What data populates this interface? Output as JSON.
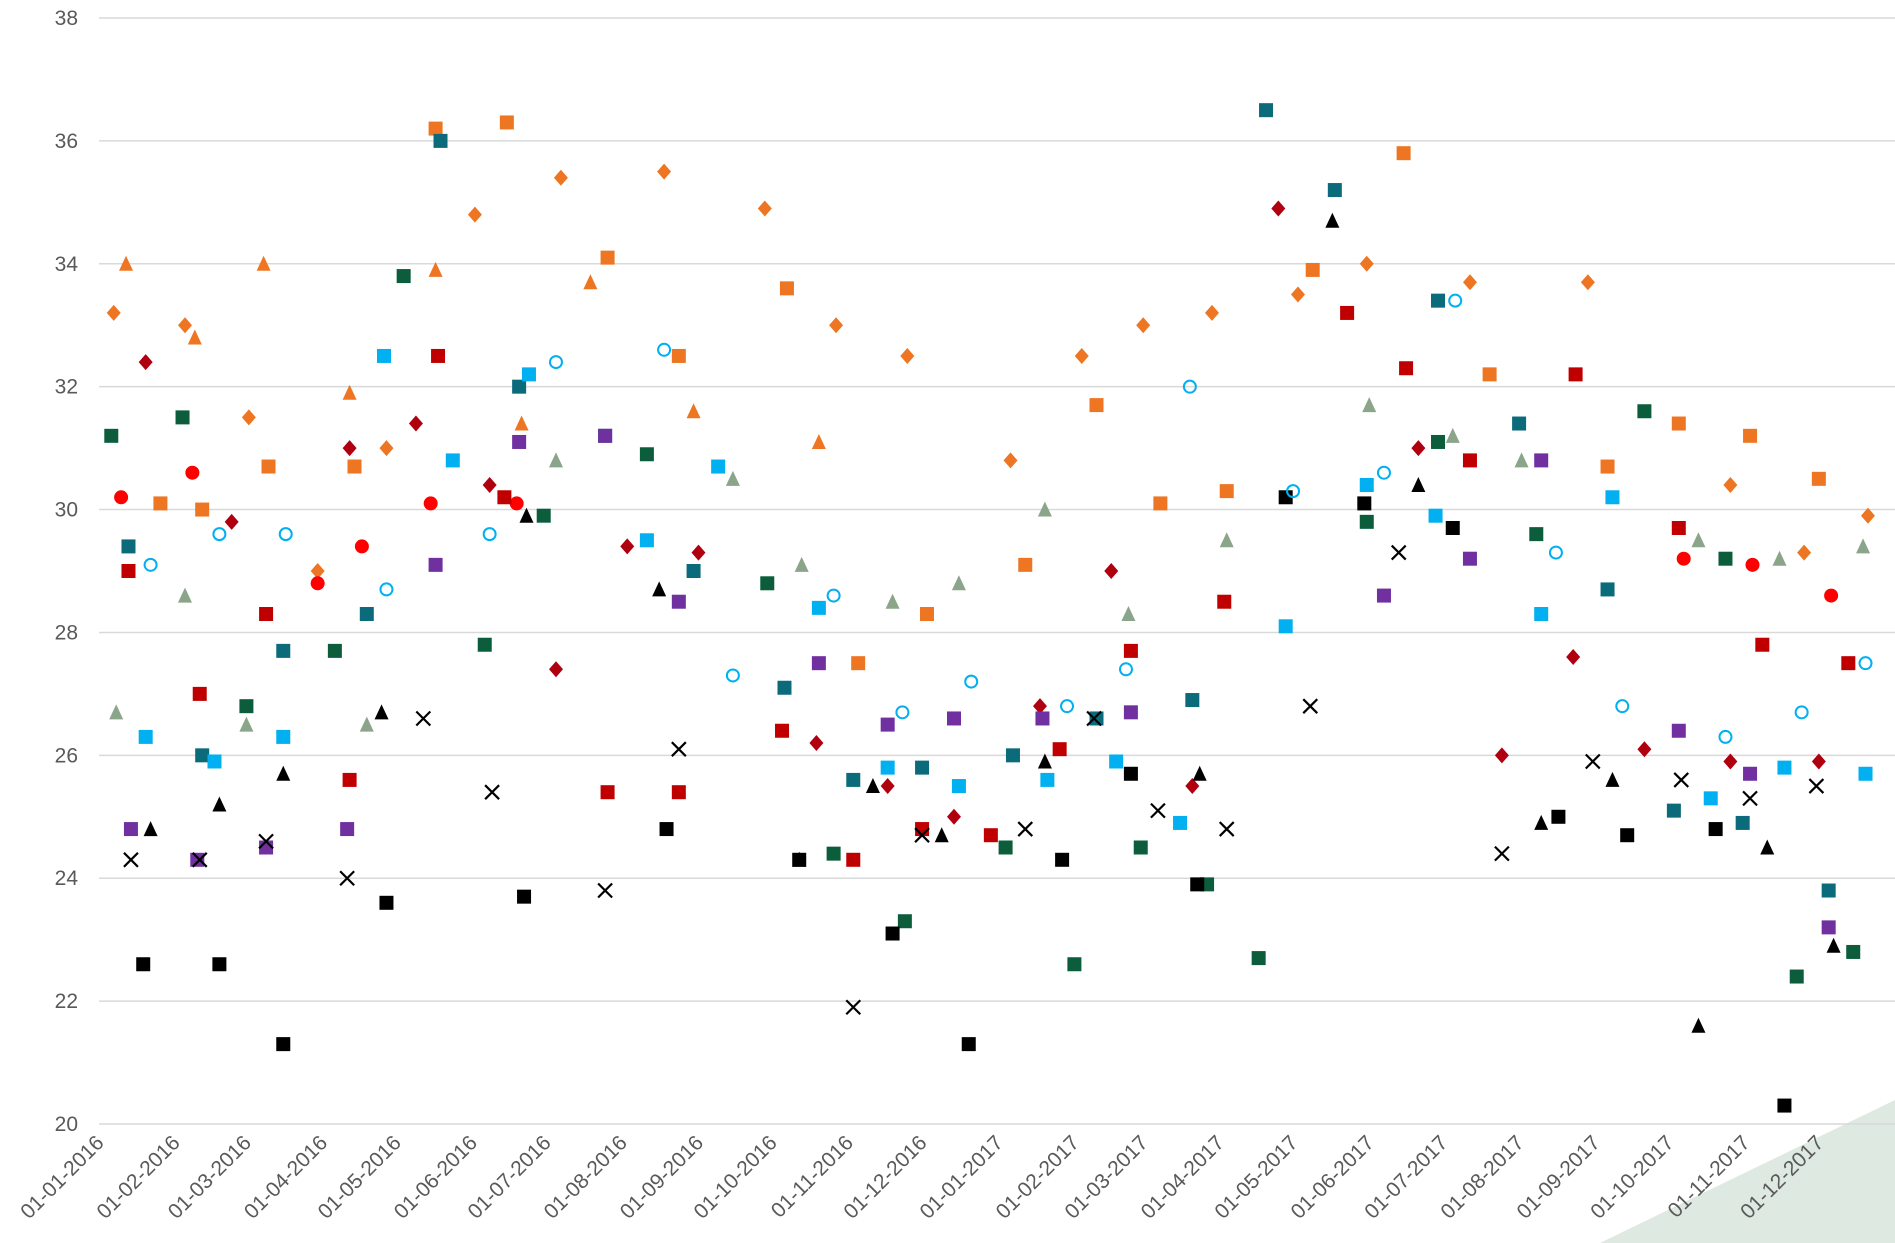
{
  "chart_data": {
    "type": "scatter",
    "xlim": [
      "01-01-2016",
      "01-01-2018"
    ],
    "ylim": [
      20,
      38
    ],
    "yticks": [
      20,
      22,
      24,
      26,
      28,
      30,
      32,
      34,
      36,
      38
    ],
    "grid": true,
    "xticks": [
      "01-01-2016",
      "01-02-2016",
      "01-03-2016",
      "01-04-2016",
      "01-05-2016",
      "01-06-2016",
      "01-07-2016",
      "01-08-2016",
      "01-09-2016",
      "01-10-2016",
      "01-11-2016",
      "01-12-2016",
      "01-01-2017",
      "01-02-2017",
      "01-03-2017",
      "01-04-2017",
      "01-05-2017",
      "01-06-2017",
      "01-07-2017",
      "01-08-2017",
      "01-09-2017",
      "01-10-2017",
      "01-11-2017",
      "01-12-2017"
    ],
    "series": [
      {
        "color": "#ee7623",
        "marker": "diamond",
        "x": [
          "07-01-2016",
          "05-02-2016",
          "02-03-2016",
          "30-03-2016",
          "27-04-2016",
          "02-06-2016",
          "07-07-2016",
          "18-08-2016",
          "28-09-2016",
          "27-10-2016",
          "25-11-2016",
          "06-01-2017",
          "04-02-2017",
          "01-03-2017",
          "29-03-2017",
          "03-05-2017",
          "31-05-2017",
          "12-07-2017",
          "29-08-2017",
          "26-10-2017",
          "25-11-2017",
          "21-12-2017"
        ],
        "values": [
          33.2,
          33.0,
          31.5,
          29.0,
          31.0,
          34.8,
          35.4,
          35.5,
          34.9,
          33.0,
          32.5,
          30.8,
          32.5,
          33.0,
          33.2,
          33.5,
          34.0,
          33.7,
          33.7,
          30.4,
          29.3,
          29.9
        ]
      },
      {
        "color": "#ee7623",
        "marker": "square",
        "x": [
          "26-01-2016",
          "12-02-2016",
          "10-03-2016",
          "14-04-2016",
          "17-05-2016",
          "15-06-2016",
          "26-07-2016",
          "24-08-2016",
          "07-10-2016",
          "05-11-2016",
          "03-12-2016",
          "12-01-2017",
          "10-02-2017",
          "08-03-2017",
          "04-04-2017",
          "09-05-2017",
          "15-06-2017",
          "20-07-2017",
          "06-09-2017",
          "05-10-2017",
          "03-11-2017",
          "01-12-2017"
        ],
        "values": [
          30.1,
          30.0,
          30.7,
          30.7,
          36.2,
          36.3,
          34.1,
          32.5,
          33.6,
          27.5,
          28.3,
          29.1,
          31.7,
          30.1,
          30.3,
          33.9,
          35.8,
          32.2,
          30.7,
          31.4,
          31.2,
          30.5
        ]
      },
      {
        "color": "#ee7623",
        "marker": "triangle",
        "x": [
          "12-01-2016",
          "09-02-2016",
          "08-03-2016",
          "12-04-2016",
          "17-05-2016",
          "21-06-2016",
          "19-07-2016",
          "30-08-2016",
          "20-10-2016"
        ],
        "values": [
          34.0,
          32.8,
          34.0,
          31.9,
          33.9,
          31.4,
          33.7,
          31.6,
          31.1
        ]
      },
      {
        "color": "#ff0000",
        "marker": "circle",
        "x": [
          "10-01-2016",
          "08-02-2016",
          "30-03-2016",
          "17-04-2016",
          "15-05-2016",
          "19-06-2016",
          "07-10-2017",
          "04-11-2017",
          "06-12-2017"
        ],
        "values": [
          30.2,
          30.6,
          28.8,
          29.4,
          30.1,
          30.1,
          29.2,
          29.1,
          28.6
        ]
      },
      {
        "color": "#c00000",
        "marker": "square",
        "x": [
          "13-01-2016",
          "11-02-2016",
          "09-03-2016",
          "12-04-2016",
          "18-05-2016",
          "14-06-2016",
          "26-07-2016",
          "24-08-2016",
          "05-10-2016",
          "03-11-2016",
          "01-12-2016",
          "29-12-2016",
          "26-01-2017",
          "24-02-2017",
          "03-04-2017",
          "23-05-2017",
          "16-06-2017",
          "12-07-2017",
          "24-08-2017",
          "05-10-2017",
          "08-11-2017",
          "13-12-2017"
        ],
        "values": [
          29.0,
          27.0,
          28.3,
          25.6,
          32.5,
          30.2,
          25.4,
          25.4,
          26.4,
          24.3,
          24.8,
          24.7,
          26.1,
          27.7,
          28.5,
          33.2,
          32.3,
          30.8,
          32.2,
          29.7,
          27.8,
          27.5
        ]
      },
      {
        "color": "#b00010",
        "marker": "diamond",
        "x": [
          "20-01-2016",
          "24-02-2016",
          "12-04-2016",
          "09-05-2016",
          "08-06-2016",
          "05-07-2016",
          "03-08-2016",
          "01-09-2016",
          "19-10-2016",
          "17-11-2016",
          "14-12-2016",
          "18-01-2017",
          "16-02-2017",
          "21-03-2017",
          "25-04-2017",
          "21-06-2017",
          "25-07-2017",
          "23-08-2017",
          "21-09-2017",
          "26-10-2017",
          "01-12-2017"
        ],
        "values": [
          32.4,
          29.8,
          31.0,
          31.4,
          30.4,
          27.4,
          29.4,
          29.3,
          26.2,
          25.5,
          25.0,
          26.8,
          29.0,
          25.5,
          34.9,
          31.0,
          26.0,
          27.6,
          26.1,
          25.9,
          25.9
        ]
      },
      {
        "color": "#0b6b7a",
        "marker": "square",
        "x": [
          "13-01-2016",
          "12-02-2016",
          "16-03-2016",
          "19-04-2016",
          "19-05-2016",
          "20-06-2016",
          "25-07-2016",
          "30-08-2016",
          "06-10-2016",
          "03-11-2016",
          "01-12-2016",
          "07-01-2017",
          "10-02-2017",
          "21-03-2017",
          "20-04-2017",
          "18-05-2017",
          "29-06-2017",
          "01-08-2017",
          "06-09-2017",
          "03-10-2017",
          "31-10-2017",
          "05-12-2017"
        ],
        "values": [
          29.4,
          26.0,
          27.7,
          28.3,
          36.0,
          32.0,
          31.2,
          29.0,
          27.1,
          25.6,
          25.8,
          26.0,
          26.6,
          26.9,
          36.5,
          35.2,
          33.4,
          31.4,
          28.7,
          25.1,
          24.9,
          23.8
        ]
      },
      {
        "color": "#0b5d3b",
        "marker": "square",
        "x": [
          "06-01-2016",
          "04-02-2016",
          "01-03-2016",
          "06-04-2016",
          "04-05-2016",
          "06-06-2016",
          "30-06-2016",
          "11-08-2016",
          "29-09-2016",
          "26-10-2016",
          "24-11-2016",
          "04-01-2017",
          "01-02-2017",
          "28-02-2017",
          "27-03-2017",
          "17-04-2017",
          "31-05-2017",
          "29-06-2017",
          "08-08-2017",
          "21-09-2017",
          "24-10-2017",
          "22-11-2017",
          "15-12-2017"
        ],
        "values": [
          31.2,
          31.5,
          26.8,
          27.7,
          33.8,
          27.8,
          29.9,
          30.9,
          28.8,
          24.4,
          23.3,
          24.5,
          22.6,
          24.5,
          23.9,
          22.7,
          29.8,
          31.1,
          29.6,
          31.6,
          29.2,
          22.4,
          22.8
        ]
      },
      {
        "color": "#000000",
        "marker": "square",
        "x": [
          "19-01-2016",
          "19-02-2016",
          "16-03-2016",
          "27-04-2016",
          "22-06-2016",
          "19-08-2016",
          "12-10-2016",
          "19-11-2016",
          "20-12-2016",
          "27-01-2017",
          "24-02-2017",
          "23-03-2017",
          "28-04-2017",
          "30-05-2017",
          "05-07-2017",
          "17-08-2017",
          "14-09-2017",
          "20-10-2017",
          "17-11-2017"
        ],
        "values": [
          22.6,
          22.6,
          21.3,
          23.6,
          23.7,
          24.8,
          24.3,
          23.1,
          21.3,
          24.3,
          25.7,
          23.9,
          30.2,
          30.1,
          29.7,
          25.0,
          24.7,
          24.8,
          20.3
        ]
      },
      {
        "color": "#00b0f0",
        "marker": "square",
        "x": [
          "20-01-2016",
          "17-02-2016",
          "16-03-2016",
          "26-04-2016",
          "24-05-2016",
          "24-06-2016",
          "11-08-2016",
          "09-09-2016",
          "20-10-2016",
          "17-11-2016",
          "16-12-2016",
          "21-01-2017",
          "18-02-2017",
          "16-03-2017",
          "28-04-2017",
          "31-05-2017",
          "28-06-2017",
          "10-08-2017",
          "08-09-2017",
          "18-10-2017",
          "17-11-2017",
          "20-12-2017"
        ],
        "values": [
          26.3,
          25.9,
          26.3,
          32.5,
          30.8,
          32.2,
          29.5,
          30.7,
          28.4,
          25.8,
          25.5,
          25.6,
          25.9,
          24.9,
          28.1,
          30.4,
          29.9,
          28.3,
          30.2,
          25.3,
          25.8,
          25.7
        ]
      },
      {
        "color": "#7030a0",
        "marker": "square",
        "x": [
          "14-01-2016",
          "10-02-2016",
          "09-03-2016",
          "11-04-2016",
          "17-05-2016",
          "20-06-2016",
          "25-07-2016",
          "24-08-2016",
          "20-10-2016",
          "17-11-2016",
          "14-12-2016",
          "19-01-2017",
          "24-02-2017",
          "07-06-2017",
          "12-07-2017",
          "10-08-2017",
          "05-10-2017",
          "03-11-2017",
          "05-12-2017"
        ],
        "values": [
          24.8,
          24.3,
          24.5,
          24.8,
          29.1,
          31.1,
          31.2,
          28.5,
          27.5,
          26.5,
          26.6,
          26.6,
          26.7,
          28.6,
          29.2,
          30.8,
          26.4,
          25.7,
          23.2
        ]
      },
      {
        "color": "#000000",
        "marker": "x",
        "x": [
          "14-01-2016",
          "11-02-2016",
          "09-03-2016",
          "11-04-2016",
          "12-05-2016",
          "09-06-2016",
          "25-07-2016",
          "24-08-2016",
          "03-11-2016",
          "01-12-2016",
          "12-01-2017",
          "09-02-2017",
          "07-03-2017",
          "04-04-2017",
          "08-05-2017",
          "13-06-2017",
          "25-07-2017",
          "31-08-2017",
          "06-10-2017",
          "03-11-2017",
          "30-11-2017"
        ],
        "values": [
          24.3,
          24.3,
          24.6,
          24.0,
          26.6,
          25.4,
          23.8,
          26.1,
          21.9,
          24.7,
          24.8,
          26.6,
          25.1,
          24.8,
          26.8,
          29.3,
          24.4,
          25.9,
          25.6,
          25.3,
          25.5
        ]
      },
      {
        "color": "#000000",
        "marker": "triangle",
        "x": [
          "22-01-2016",
          "19-02-2016",
          "16-03-2016",
          "25-04-2016",
          "23-06-2016",
          "16-08-2016",
          "12-10-2016",
          "11-11-2016",
          "09-12-2016",
          "20-01-2017",
          "24-03-2017",
          "17-05-2017",
          "21-06-2017",
          "10-08-2017",
          "08-09-2017",
          "13-10-2017",
          "10-11-2017",
          "07-12-2017"
        ],
        "values": [
          24.8,
          25.2,
          25.7,
          26.7,
          29.9,
          28.7,
          24.3,
          25.5,
          24.7,
          25.9,
          25.7,
          34.7,
          30.4,
          24.9,
          25.6,
          21.6,
          24.5,
          22.9
        ]
      },
      {
        "color": "#8aa58a",
        "marker": "triangle",
        "x": [
          "08-01-2016",
          "05-02-2016",
          "01-03-2016",
          "19-04-2016",
          "05-07-2016",
          "15-09-2016",
          "13-10-2016",
          "19-11-2016",
          "16-12-2016",
          "20-01-2017",
          "23-02-2017",
          "04-04-2017",
          "01-06-2017",
          "05-07-2017",
          "02-08-2017",
          "13-10-2017",
          "15-11-2017",
          "19-12-2017"
        ],
        "values": [
          26.7,
          28.6,
          26.5,
          26.5,
          30.8,
          30.5,
          29.1,
          28.5,
          28.8,
          30.0,
          28.3,
          29.5,
          31.7,
          31.2,
          30.8,
          29.5,
          29.2,
          29.4
        ]
      },
      {
        "color": "#00b0f0",
        "marker": "open-circle",
        "x": [
          "22-01-2016",
          "19-02-2016",
          "17-03-2016",
          "27-04-2016",
          "08-06-2016",
          "05-07-2016",
          "18-08-2016",
          "15-09-2016",
          "26-10-2016",
          "23-11-2016",
          "21-12-2016",
          "29-01-2017",
          "22-02-2017",
          "20-03-2017",
          "01-05-2017",
          "07-06-2017",
          "06-07-2017",
          "16-08-2017",
          "12-09-2017",
          "24-10-2017",
          "24-11-2017",
          "20-12-2017"
        ],
        "values": [
          29.1,
          29.6,
          29.6,
          28.7,
          29.6,
          32.4,
          32.6,
          27.3,
          28.6,
          26.7,
          27.2,
          26.8,
          27.4,
          32.0,
          30.3,
          30.6,
          33.4,
          29.3,
          26.8,
          26.3,
          26.7,
          27.5
        ]
      }
    ]
  }
}
